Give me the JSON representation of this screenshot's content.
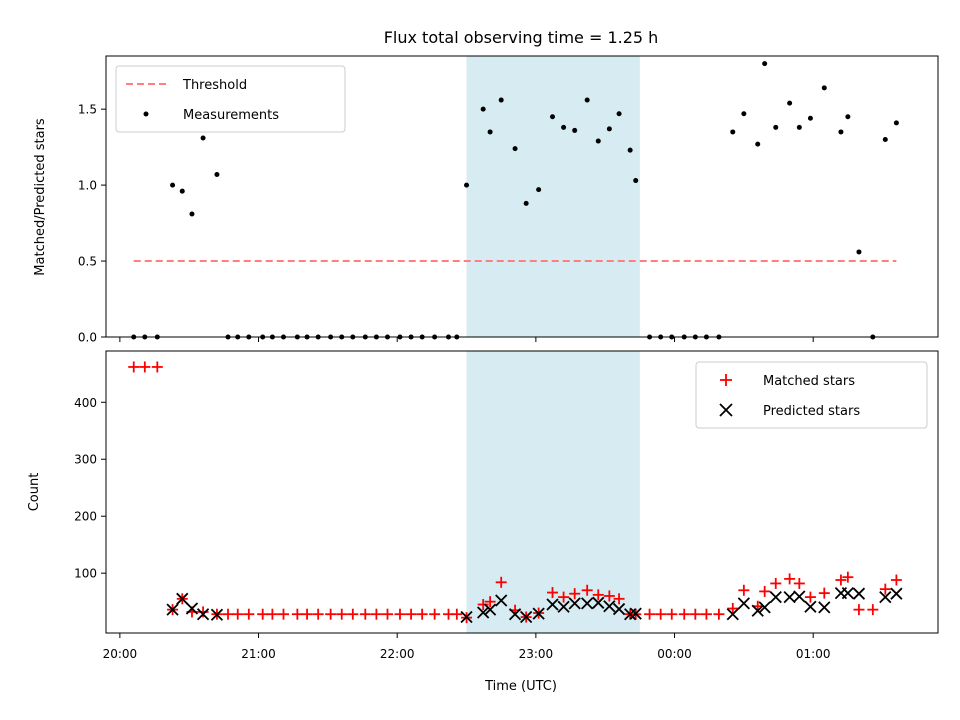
{
  "chart_data": [
    {
      "type": "scatter",
      "title": "Flux total observing time = 1.25 h",
      "ylabel": "Matched/Predicted stars",
      "ylim": [
        0,
        1.85
      ],
      "yticks": [
        "0.0",
        "0.5",
        "1.0",
        "1.5"
      ],
      "xlim": [
        19.9,
        25.9
      ],
      "highlight_span": [
        22.5,
        23.75
      ],
      "highlight_color": "#add8e6",
      "legend_position": "upper left",
      "series": [
        {
          "name": "Threshold",
          "kind": "dashed-line",
          "color": "#ff7f7f",
          "x": [
            20.1,
            25.6
          ],
          "y": [
            0.5,
            0.5
          ]
        },
        {
          "name": "Measurements",
          "kind": "points",
          "color": "#000000",
          "x": [
            20.1,
            20.18,
            20.27,
            20.38,
            20.45,
            20.52,
            20.6,
            20.7,
            20.78,
            20.85,
            20.93,
            21.03,
            21.1,
            21.18,
            21.28,
            21.35,
            21.43,
            21.52,
            21.6,
            21.68,
            21.77,
            21.85,
            21.93,
            22.02,
            22.1,
            22.18,
            22.27,
            22.37,
            22.43,
            22.5,
            22.62,
            22.67,
            22.75,
            22.85,
            22.93,
            23.02,
            23.12,
            23.2,
            23.28,
            23.37,
            23.45,
            23.53,
            23.6,
            23.68,
            23.72,
            23.82,
            23.9,
            23.98,
            24.07,
            24.15,
            24.23,
            24.32,
            24.42,
            24.5,
            24.6,
            24.65,
            24.73,
            24.83,
            24.9,
            24.98,
            25.08,
            25.2,
            25.25,
            25.33,
            25.43,
            25.52,
            25.6
          ],
          "y": [
            0,
            0,
            0,
            1.0,
            0.96,
            0.81,
            1.31,
            1.07,
            0,
            0,
            0,
            0,
            0,
            0,
            0,
            0,
            0,
            0,
            0,
            0,
            0,
            0,
            0,
            0,
            0,
            0,
            0,
            0,
            0,
            1.0,
            1.5,
            1.35,
            1.56,
            1.24,
            0.88,
            0.97,
            1.45,
            1.38,
            1.36,
            1.56,
            1.29,
            1.37,
            1.47,
            1.23,
            1.03,
            0,
            0,
            0,
            0,
            0,
            0,
            0,
            1.35,
            1.47,
            1.27,
            1.8,
            1.38,
            1.54,
            1.38,
            1.44,
            1.64,
            1.35,
            1.45,
            0.56,
            0,
            1.3,
            1.41
          ]
        }
      ]
    },
    {
      "type": "scatter",
      "ylabel": "Count",
      "xlabel": "Time (UTC)",
      "ylim": [
        -5,
        490
      ],
      "yticks": [
        "100",
        "200",
        "300",
        "400"
      ],
      "xlim": [
        19.9,
        25.9
      ],
      "xticks": [
        "20:00",
        "21:00",
        "22:00",
        "23:00",
        "00:00",
        "01:00"
      ],
      "highlight_span": [
        22.5,
        23.75
      ],
      "highlight_color": "#add8e6",
      "legend_position": "upper right",
      "series": [
        {
          "name": "Matched stars",
          "kind": "plus",
          "color": "#ff0000",
          "x": [
            20.1,
            20.18,
            20.27,
            20.38,
            20.45,
            20.52,
            20.6,
            20.7,
            20.78,
            20.85,
            20.93,
            21.03,
            21.1,
            21.18,
            21.28,
            21.35,
            21.43,
            21.52,
            21.6,
            21.68,
            21.77,
            21.85,
            21.93,
            22.02,
            22.1,
            22.18,
            22.27,
            22.37,
            22.43,
            22.5,
            22.62,
            22.67,
            22.75,
            22.85,
            22.93,
            23.02,
            23.12,
            23.2,
            23.28,
            23.37,
            23.45,
            23.53,
            23.6,
            23.68,
            23.72,
            23.82,
            23.9,
            23.98,
            24.07,
            24.15,
            24.23,
            24.32,
            24.42,
            24.5,
            24.6,
            24.65,
            24.73,
            24.83,
            24.9,
            24.98,
            25.08,
            25.2,
            25.25,
            25.33,
            25.43,
            25.52,
            25.6
          ],
          "y": [
            462,
            462,
            462,
            36,
            55,
            32,
            32,
            28,
            28,
            28,
            28,
            28,
            28,
            28,
            28,
            28,
            28,
            28,
            28,
            28,
            28,
            28,
            28,
            28,
            28,
            28,
            28,
            28,
            28,
            22,
            45,
            50,
            84,
            35,
            23,
            30,
            66,
            58,
            64,
            70,
            62,
            60,
            55,
            28,
            28,
            28,
            28,
            28,
            28,
            28,
            28,
            28,
            38,
            70,
            42,
            68,
            82,
            90,
            82,
            58,
            65,
            88,
            93,
            36,
            36,
            72,
            88
          ]
        },
        {
          "name": "Predicted stars",
          "kind": "cross",
          "color": "#000000",
          "x": [
            20.38,
            20.45,
            20.52,
            20.6,
            20.7,
            22.5,
            22.62,
            22.67,
            22.75,
            22.85,
            22.93,
            23.02,
            23.12,
            23.2,
            23.28,
            23.37,
            23.45,
            23.53,
            23.6,
            23.68,
            23.72,
            24.42,
            24.5,
            24.6,
            24.65,
            24.73,
            24.83,
            24.9,
            24.98,
            25.08,
            25.2,
            25.25,
            25.33,
            25.52,
            25.6
          ],
          "y": [
            36,
            55,
            38,
            28,
            27,
            23,
            31,
            36,
            52,
            28,
            23,
            29,
            45,
            41,
            47,
            47,
            48,
            42,
            37,
            28,
            29,
            28,
            47,
            34,
            40,
            58,
            58,
            59,
            41,
            40,
            65,
            65,
            64,
            58,
            64
          ]
        }
      ]
    }
  ]
}
